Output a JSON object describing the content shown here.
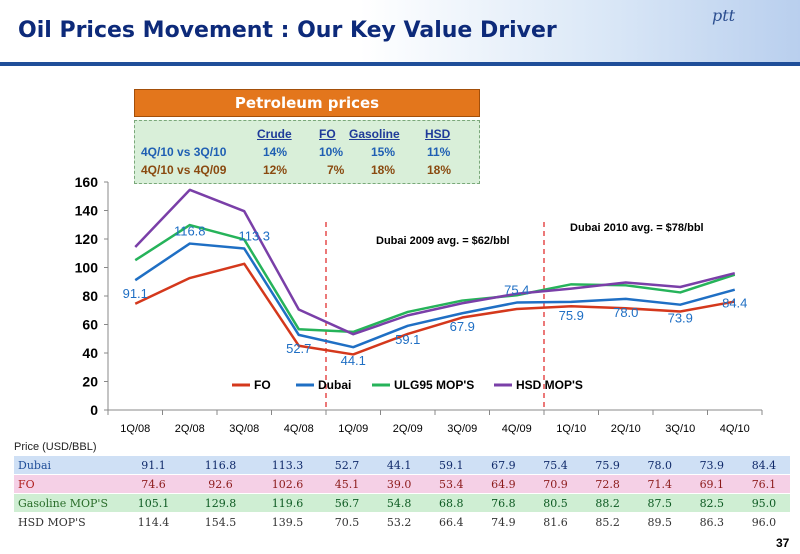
{
  "title": "Oil Prices Movement : Our Key Value Driver",
  "logo": "ptt",
  "banner": "Petroleum  prices",
  "petroleum_table": {
    "headers": [
      "Crude",
      "FO",
      "Gasoline",
      "HSD"
    ],
    "rows": [
      {
        "label": "4Q/10 vs 3Q/10",
        "values": [
          "14%",
          "10%",
          "15%",
          "11%"
        ]
      },
      {
        "label": "4Q/10 vs 4Q/09",
        "values": [
          "12%",
          "7%",
          "18%",
          "18%"
        ]
      }
    ]
  },
  "annotations": {
    "dubai_2009": "Dubai 2009 avg. = $62/bbl",
    "dubai_2010": "Dubai 2010 avg. = $78/bbl"
  },
  "chart_data": {
    "type": "line",
    "x": [
      "1Q/08",
      "2Q/08",
      "3Q/08",
      "4Q/08",
      "1Q/09",
      "2Q/09",
      "3Q/09",
      "4Q/09",
      "1Q/10",
      "2Q/10",
      "3Q/10",
      "4Q/10"
    ],
    "ylim": [
      0,
      160
    ],
    "yticks": [
      0,
      20,
      40,
      60,
      80,
      100,
      120,
      140,
      160
    ],
    "series": [
      {
        "name": "FO",
        "color": "#d4381c",
        "values": [
          74.6,
          92.6,
          102.6,
          45.1,
          39.0,
          53.4,
          64.9,
          70.9,
          72.8,
          71.4,
          69.1,
          76.1
        ]
      },
      {
        "name": "Dubai",
        "color": "#1f6fc4",
        "values": [
          91.1,
          116.8,
          113.3,
          52.7,
          44.1,
          59.1,
          67.9,
          75.4,
          75.9,
          78.0,
          73.9,
          84.4
        ]
      },
      {
        "name": "ULG95 MOP'S",
        "color": "#26b35a",
        "values": [
          105.1,
          129.8,
          119.6,
          56.7,
          54.8,
          68.8,
          76.8,
          80.5,
          88.2,
          87.5,
          82.5,
          95.0
        ]
      },
      {
        "name": "HSD MOP'S",
        "color": "#7a3fa8",
        "values": [
          114.4,
          154.5,
          139.5,
          70.5,
          53.2,
          66.4,
          74.9,
          81.6,
          85.2,
          89.5,
          86.3,
          96.0
        ]
      }
    ],
    "data_labels": [
      "91.1",
      "116.8",
      "113.3",
      "52.7",
      "44.1",
      "59.1",
      "67.9",
      "75.4",
      "75.9",
      "78.0",
      "73.9",
      "84.4"
    ],
    "legend_position": "bottom"
  },
  "data_table": {
    "unit_label": "Price (USD/BBL)",
    "rows": [
      {
        "label": "Dubai",
        "values": [
          "91.1",
          "116.8",
          "113.3",
          "52.7",
          "44.1",
          "59.1",
          "67.9",
          "75.4",
          "75.9",
          "78.0",
          "73.9",
          "84.4"
        ]
      },
      {
        "label": "FO",
        "values": [
          "74.6",
          "92.6",
          "102.6",
          "45.1",
          "39.0",
          "53.4",
          "64.9",
          "70.9",
          "72.8",
          "71.4",
          "69.1",
          "76.1"
        ]
      },
      {
        "label": "Gasoline MOP'S",
        "values": [
          "105.1",
          "129.8",
          "119.6",
          "56.7",
          "54.8",
          "68.8",
          "76.8",
          "80.5",
          "88.2",
          "87.5",
          "82.5",
          "95.0"
        ]
      },
      {
        "label": "HSD MOP'S",
        "values": [
          "114.4",
          "154.5",
          "139.5",
          "70.5",
          "53.2",
          "66.4",
          "74.9",
          "81.6",
          "85.2",
          "89.5",
          "86.3",
          "96.0"
        ]
      }
    ]
  },
  "page_number": "37"
}
